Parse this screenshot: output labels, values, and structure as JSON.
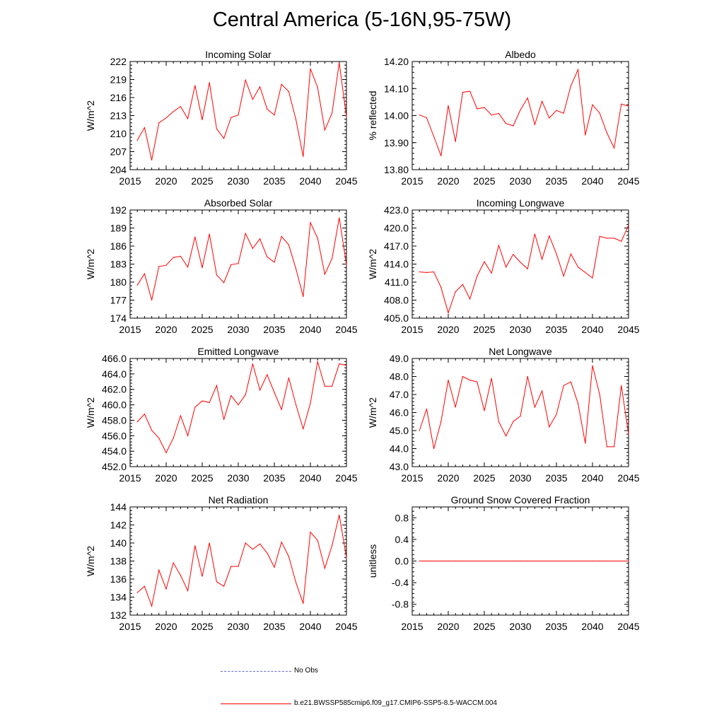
{
  "title": "Central America (5-16N,95-75W)",
  "colors": {
    "series": "#ff0000",
    "noobs": "#6666cc",
    "axis": "#000000"
  },
  "legend": {
    "noobs_label": "No Obs",
    "series_label": "b.e21.BWSSP585cmip6.f09_g17.CMIP6-SSP5-8.5-WACCM.004"
  },
  "chart_data": [
    {
      "type": "line",
      "title": "Incoming Solar",
      "ylabel": "W/m^2",
      "xlim": [
        2015,
        2045
      ],
      "ylim": [
        204,
        222
      ],
      "xticks": [
        2015,
        2020,
        2025,
        2030,
        2035,
        2040,
        2045
      ],
      "yticks": [
        "204",
        "207",
        "210",
        "213",
        "216",
        "219",
        "222"
      ],
      "x": [
        2016,
        2017,
        2018,
        2019,
        2020,
        2021,
        2022,
        2023,
        2024,
        2025,
        2026,
        2027,
        2028,
        2029,
        2030,
        2031,
        2032,
        2033,
        2034,
        2035,
        2036,
        2037,
        2038,
        2039,
        2040,
        2041,
        2042,
        2043,
        2044,
        2045
      ],
      "values": [
        208.9,
        211.0,
        205.6,
        211.8,
        212.6,
        213.7,
        214.5,
        212.5,
        218.0,
        212.3,
        218.5,
        210.8,
        209.2,
        212.7,
        213.1,
        218.9,
        215.7,
        217.8,
        214.1,
        213.1,
        218.2,
        217.0,
        212.3,
        206.2,
        220.8,
        217.7,
        210.6,
        213.4,
        221.8,
        212.8
      ],
      "series_name": "b.e21.BWSSP585cmip6.f09_g17.CMIP6-SSP5-8.5-WACCM.004"
    },
    {
      "type": "line",
      "title": "Albedo",
      "ylabel": "% reflected",
      "xlim": [
        2015,
        2045
      ],
      "ylim": [
        13.8,
        14.2
      ],
      "xticks": [
        2015,
        2020,
        2025,
        2030,
        2035,
        2040,
        2045
      ],
      "yticks": [
        "13.80",
        "13.90",
        "14.00",
        "14.10",
        "14.20"
      ],
      "x": [
        2016,
        2017,
        2018,
        2019,
        2020,
        2021,
        2022,
        2023,
        2024,
        2025,
        2026,
        2027,
        2028,
        2029,
        2030,
        2031,
        2032,
        2033,
        2034,
        2035,
        2036,
        2037,
        2038,
        2039,
        2040,
        2041,
        2042,
        2043,
        2044,
        2045
      ],
      "values": [
        14.003,
        13.992,
        13.923,
        13.851,
        14.037,
        13.904,
        14.086,
        14.09,
        14.025,
        14.03,
        14.002,
        14.008,
        13.971,
        13.962,
        14.021,
        14.065,
        13.967,
        14.053,
        13.991,
        14.019,
        14.009,
        14.11,
        14.17,
        13.928,
        14.04,
        14.009,
        13.936,
        13.88,
        14.043,
        14.035
      ],
      "series_name": "b.e21.BWSSP585cmip6.f09_g17.CMIP6-SSP5-8.5-WACCM.004"
    },
    {
      "type": "line",
      "title": "Absorbed Solar",
      "ylabel": "W/m^2",
      "xlim": [
        2015,
        2045
      ],
      "ylim": [
        174,
        192
      ],
      "xticks": [
        2015,
        2020,
        2025,
        2030,
        2035,
        2040,
        2045
      ],
      "yticks": [
        "174",
        "177",
        "180",
        "183",
        "186",
        "189",
        "192"
      ],
      "x": [
        2016,
        2017,
        2018,
        2019,
        2020,
        2021,
        2022,
        2023,
        2024,
        2025,
        2026,
        2027,
        2028,
        2029,
        2030,
        2031,
        2032,
        2033,
        2034,
        2035,
        2036,
        2037,
        2038,
        2039,
        2040,
        2041,
        2042,
        2043,
        2044,
        2045
      ],
      "values": [
        179.5,
        181.4,
        177.0,
        182.6,
        182.8,
        184.1,
        184.3,
        182.5,
        187.5,
        182.4,
        188.0,
        181.2,
        179.9,
        182.9,
        183.1,
        188.1,
        185.6,
        187.2,
        184.2,
        183.3,
        187.6,
        186.2,
        182.2,
        177.6,
        189.9,
        187.3,
        181.3,
        183.9,
        190.7,
        182.9
      ],
      "series_name": "b.e21.BWSSP585cmip6.f09_g17.CMIP6-SSP5-8.5-WACCM.004"
    },
    {
      "type": "line",
      "title": "Incoming Longwave",
      "ylabel": "W/m^2",
      "xlim": [
        2015,
        2045
      ],
      "ylim": [
        405,
        423
      ],
      "xticks": [
        2015,
        2020,
        2025,
        2030,
        2035,
        2040,
        2045
      ],
      "yticks": [
        "405.0",
        "408.0",
        "411.0",
        "414.0",
        "417.0",
        "420.0",
        "423.0"
      ],
      "x": [
        2016,
        2017,
        2018,
        2019,
        2020,
        2021,
        2022,
        2023,
        2024,
        2025,
        2026,
        2027,
        2028,
        2029,
        2030,
        2031,
        2032,
        2033,
        2034,
        2035,
        2036,
        2037,
        2038,
        2039,
        2040,
        2041,
        2042,
        2043,
        2044,
        2045
      ],
      "values": [
        412.7,
        412.6,
        412.7,
        410.1,
        405.9,
        409.4,
        410.6,
        408.2,
        412.0,
        414.4,
        412.5,
        417.1,
        413.5,
        415.6,
        414.3,
        413.2,
        419.0,
        414.8,
        418.7,
        415.7,
        412.0,
        415.7,
        413.5,
        412.6,
        411.7,
        418.6,
        418.3,
        418.3,
        417.8,
        420.5
      ],
      "series_name": "b.e21.BWSSP585cmip6.f09_g17.CMIP6-SSP5-8.5-WACCM.004"
    },
    {
      "type": "line",
      "title": "Emitted Longwave",
      "ylabel": "W/m^2",
      "xlim": [
        2015,
        2045
      ],
      "ylim": [
        452,
        466
      ],
      "xticks": [
        2015,
        2020,
        2025,
        2030,
        2035,
        2040,
        2045
      ],
      "yticks": [
        "452.0",
        "454.0",
        "456.0",
        "458.0",
        "460.0",
        "462.0",
        "464.0",
        "466.0"
      ],
      "x": [
        2016,
        2017,
        2018,
        2019,
        2020,
        2021,
        2022,
        2023,
        2024,
        2025,
        2026,
        2027,
        2028,
        2029,
        2030,
        2031,
        2032,
        2033,
        2034,
        2035,
        2036,
        2037,
        2038,
        2039,
        2040,
        2041,
        2042,
        2043,
        2044,
        2045
      ],
      "values": [
        457.8,
        458.8,
        456.7,
        455.7,
        453.8,
        455.7,
        458.6,
        456.0,
        459.7,
        460.5,
        460.3,
        462.5,
        458.1,
        461.2,
        460.0,
        461.3,
        465.3,
        461.9,
        463.9,
        461.6,
        459.4,
        463.5,
        460.0,
        456.9,
        460.2,
        465.6,
        462.4,
        462.4,
        465.3,
        465.1
      ],
      "series_name": "b.e21.BWSSP585cmip6.f09_g17.CMIP6-SSP5-8.5-WACCM.004"
    },
    {
      "type": "line",
      "title": "Net Longwave",
      "ylabel": "W/m^2",
      "xlim": [
        2015,
        2045
      ],
      "ylim": [
        43,
        49
      ],
      "xticks": [
        2015,
        2020,
        2025,
        2030,
        2035,
        2040,
        2045
      ],
      "yticks": [
        "43.0",
        "44.0",
        "45.0",
        "46.0",
        "47.0",
        "48.0",
        "49.0"
      ],
      "x": [
        2016,
        2017,
        2018,
        2019,
        2020,
        2021,
        2022,
        2023,
        2024,
        2025,
        2026,
        2027,
        2028,
        2029,
        2030,
        2031,
        2032,
        2033,
        2034,
        2035,
        2036,
        2037,
        2038,
        2039,
        2040,
        2041,
        2042,
        2043,
        2044,
        2045
      ],
      "values": [
        45.0,
        46.2,
        44.0,
        45.5,
        47.8,
        46.3,
        48.0,
        47.8,
        47.7,
        46.1,
        47.9,
        45.5,
        44.7,
        45.5,
        45.8,
        48.0,
        46.3,
        47.2,
        45.2,
        45.9,
        47.5,
        47.7,
        46.5,
        44.3,
        48.6,
        47.0,
        44.1,
        44.1,
        47.5,
        44.8
      ],
      "series_name": "b.e21.BWSSP585cmip6.f09_g17.CMIP6-SSP5-8.5-WACCM.004"
    },
    {
      "type": "line",
      "title": "Net Radiation",
      "ylabel": "W/m^2",
      "xlim": [
        2015,
        2045
      ],
      "ylim": [
        132,
        144
      ],
      "xticks": [
        2015,
        2020,
        2025,
        2030,
        2035,
        2040,
        2045
      ],
      "yticks": [
        "132",
        "134",
        "136",
        "138",
        "140",
        "142",
        "144"
      ],
      "x": [
        2016,
        2017,
        2018,
        2019,
        2020,
        2021,
        2022,
        2023,
        2024,
        2025,
        2026,
        2027,
        2028,
        2029,
        2030,
        2031,
        2032,
        2033,
        2034,
        2035,
        2036,
        2037,
        2038,
        2039,
        2040,
        2041,
        2042,
        2043,
        2044,
        2045
      ],
      "values": [
        134.5,
        135.2,
        133.0,
        137.0,
        134.9,
        137.8,
        136.4,
        134.7,
        139.7,
        136.3,
        140.0,
        135.7,
        135.2,
        137.4,
        137.4,
        140.0,
        139.3,
        139.9,
        138.9,
        137.3,
        140.1,
        138.5,
        135.6,
        133.3,
        141.2,
        140.3,
        137.2,
        139.7,
        143.1,
        138.4
      ],
      "series_name": "b.e21.BWSSP585cmip6.f09_g17.CMIP6-SSP5-8.5-WACCM.004"
    },
    {
      "type": "line",
      "title": "Ground Snow Covered Fraction",
      "ylabel": "unitless",
      "xlim": [
        2015,
        2045
      ],
      "ylim": [
        -1.0,
        1.0
      ],
      "xticks": [
        2015,
        2020,
        2025,
        2030,
        2035,
        2040,
        2045
      ],
      "yticks": [
        "-0.8",
        "-0.4",
        "0.0",
        "0.4",
        "0.8"
      ],
      "x": [
        2016,
        2017,
        2018,
        2019,
        2020,
        2021,
        2022,
        2023,
        2024,
        2025,
        2026,
        2027,
        2028,
        2029,
        2030,
        2031,
        2032,
        2033,
        2034,
        2035,
        2036,
        2037,
        2038,
        2039,
        2040,
        2041,
        2042,
        2043,
        2044,
        2045
      ],
      "values": [
        0,
        0,
        0,
        0,
        0,
        0,
        0,
        0,
        0,
        0,
        0,
        0,
        0,
        0,
        0,
        0,
        0,
        0,
        0,
        0,
        0,
        0,
        0,
        0,
        0,
        0,
        0,
        0,
        0,
        0
      ],
      "series_name": "b.e21.BWSSP585cmip6.f09_g17.CMIP6-SSP5-8.5-WACCM.004"
    }
  ]
}
